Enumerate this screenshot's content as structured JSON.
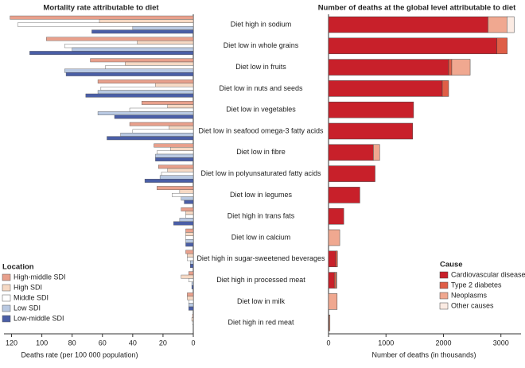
{
  "chart_data": [
    {
      "type": "bar",
      "orientation": "horizontal",
      "x_reversed": true,
      "title": "Mortality rate attributable to diet",
      "xlabel": "Deaths rate (per 100 000 population)",
      "categories": [
        "Diet high in sodium",
        "Diet low in whole grains",
        "Diet low in fruits",
        "Diet low in nuts and seeds",
        "Diet low in vegetables",
        "Diet low in seafood omega-3 fatty acids",
        "Diet low in fibre",
        "Diet low in polyunsaturated fatty acids",
        "Diet low in legumes",
        "Diet high in trans fats",
        "Diet low in calcium",
        "Diet high in sugar-sweetened beverages",
        "Diet high in processed meat",
        "Diet low in milk",
        "Diet high in red meat"
      ],
      "xlim": [
        0,
        125
      ],
      "xticks": [
        0,
        20,
        40,
        60,
        80,
        100,
        120
      ],
      "legend_title": "Location",
      "legend": "lower left",
      "series": [
        {
          "name": "High-middle SDI",
          "color": "#e8a08c",
          "values": [
            121,
            97,
            68,
            63,
            34,
            42,
            26,
            23,
            24,
            8,
            5,
            5,
            3,
            4,
            0.5
          ]
        },
        {
          "name": "High SDI",
          "color": "#f6d9c4",
          "values": [
            62,
            37,
            45,
            25,
            17,
            16,
            15,
            17,
            9,
            5,
            5,
            4,
            8,
            4,
            1
          ]
        },
        {
          "name": "Middle SDI",
          "color": "#ffffff",
          "values": [
            116,
            85,
            58,
            61,
            42,
            40,
            24,
            21,
            14,
            5,
            5,
            4,
            3,
            3,
            0.5
          ]
        },
        {
          "name": "Low SDI",
          "color": "#b9c9e2",
          "values": [
            40,
            80,
            85,
            63,
            63,
            48,
            25,
            22,
            8,
            9,
            5,
            2,
            1,
            3,
            0.2
          ]
        },
        {
          "name": "Low-middle SDI",
          "color": "#4a5ea6",
          "values": [
            67,
            108,
            84,
            71,
            52,
            57,
            25,
            32,
            6,
            13,
            5,
            2,
            1,
            3,
            0.2
          ]
        }
      ]
    },
    {
      "type": "stacked_bar",
      "orientation": "horizontal",
      "title": "Number of deaths at the global level attributable to diet",
      "xlabel": "Number of deaths (in thousands)",
      "xlim": [
        0,
        3350
      ],
      "xticks": [
        0,
        1000,
        2000,
        3000
      ],
      "legend_title": "Cause",
      "legend": "lower right",
      "series": [
        {
          "name": "Cardiovascular diseases",
          "color": "#c8202a",
          "values": [
            2775,
            2930,
            2090,
            1980,
            1480,
            1465,
            780,
            810,
            545,
            265,
            0,
            125,
            100,
            0,
            0
          ]
        },
        {
          "name": "Type 2 diabetes",
          "color": "#df5e47",
          "values": [
            0,
            180,
            55,
            110,
            0,
            0,
            0,
            0,
            0,
            0,
            0,
            30,
            30,
            0,
            10
          ]
        },
        {
          "name": "Neoplasms",
          "color": "#f0a890",
          "values": [
            330,
            0,
            320,
            0,
            0,
            0,
            110,
            0,
            0,
            0,
            195,
            0,
            15,
            150,
            15
          ]
        },
        {
          "name": "Other causes",
          "color": "#fbebe3",
          "values": [
            125,
            0,
            0,
            0,
            0,
            0,
            0,
            0,
            0,
            0,
            0,
            0,
            0,
            0,
            0
          ]
        }
      ]
    }
  ]
}
